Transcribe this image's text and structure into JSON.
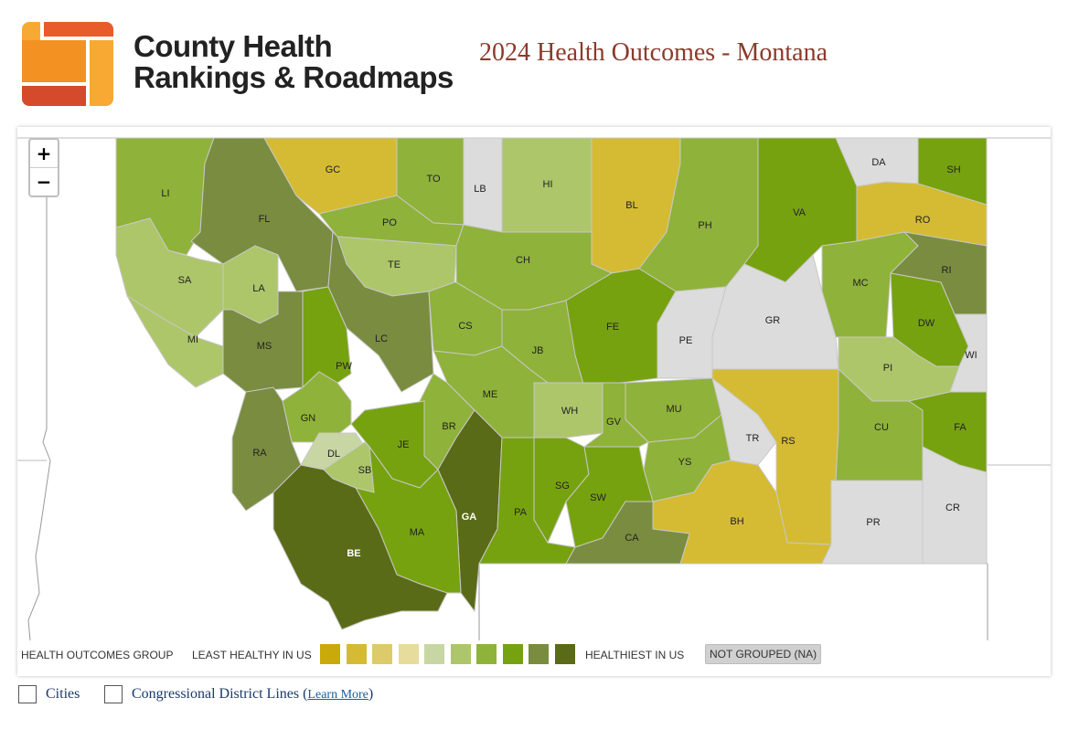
{
  "brand": {
    "line1": "County Health",
    "line2": "Rankings & Roadmaps"
  },
  "page_title": "2024 Health Outcomes - Montana",
  "zoom": {
    "in_label": "+",
    "out_label": "−"
  },
  "colors": {
    "g1": "#c9aa0a",
    "g2": "#d4bb33",
    "g3": "#dccb6a",
    "g4": "#e6dc9c",
    "g5": "#c8d6a4",
    "g6": "#adc66a",
    "g7": "#8fb23a",
    "g8": "#77a210",
    "g9": "#7a8c40",
    "g10": "#5a6b18",
    "na": "#dcdcdc"
  },
  "counties": [
    {
      "abbr": "LI",
      "group": "g7"
    },
    {
      "abbr": "FL",
      "group": "g9"
    },
    {
      "abbr": "GC",
      "group": "g2"
    },
    {
      "abbr": "TO",
      "group": "g7"
    },
    {
      "abbr": "LB",
      "group": "na"
    },
    {
      "abbr": "HI",
      "group": "g6"
    },
    {
      "abbr": "BL",
      "group": "g2"
    },
    {
      "abbr": "PH",
      "group": "g7"
    },
    {
      "abbr": "VA",
      "group": "g8"
    },
    {
      "abbr": "DA",
      "group": "na"
    },
    {
      "abbr": "SH",
      "group": "g8"
    },
    {
      "abbr": "RO",
      "group": "g2"
    },
    {
      "abbr": "PO",
      "group": "g7"
    },
    {
      "abbr": "SA",
      "group": "g6"
    },
    {
      "abbr": "LA",
      "group": "g6"
    },
    {
      "abbr": "TE",
      "group": "g6"
    },
    {
      "abbr": "CH",
      "group": "g7"
    },
    {
      "abbr": "MC",
      "group": "g7"
    },
    {
      "abbr": "RI",
      "group": "g9"
    },
    {
      "abbr": "MI",
      "group": "g6"
    },
    {
      "abbr": "MS",
      "group": "g9"
    },
    {
      "abbr": "LC",
      "group": "g9"
    },
    {
      "abbr": "CS",
      "group": "g7"
    },
    {
      "abbr": "FE",
      "group": "g8"
    },
    {
      "abbr": "PE",
      "group": "na"
    },
    {
      "abbr": "GR",
      "group": "na"
    },
    {
      "abbr": "DW",
      "group": "g8"
    },
    {
      "abbr": "WI",
      "group": "na"
    },
    {
      "abbr": "PW",
      "group": "g8"
    },
    {
      "abbr": "JB",
      "group": "g7"
    },
    {
      "abbr": "PI",
      "group": "g6"
    },
    {
      "abbr": "ME",
      "group": "g7"
    },
    {
      "abbr": "WH",
      "group": "g6"
    },
    {
      "abbr": "MU",
      "group": "g7"
    },
    {
      "abbr": "GN",
      "group": "g7"
    },
    {
      "abbr": "GV",
      "group": "g7"
    },
    {
      "abbr": "CU",
      "group": "g7"
    },
    {
      "abbr": "FA",
      "group": "g8"
    },
    {
      "abbr": "TR",
      "group": "na"
    },
    {
      "abbr": "RS",
      "group": "g2"
    },
    {
      "abbr": "BR",
      "group": "g7"
    },
    {
      "abbr": "JE",
      "group": "g8"
    },
    {
      "abbr": "RA",
      "group": "g9"
    },
    {
      "abbr": "DL",
      "group": "g5"
    },
    {
      "abbr": "SB",
      "group": "g6"
    },
    {
      "abbr": "YS",
      "group": "g7"
    },
    {
      "abbr": "SG",
      "group": "g8"
    },
    {
      "abbr": "SW",
      "group": "g8"
    },
    {
      "abbr": "GA",
      "group": "g10"
    },
    {
      "abbr": "PA",
      "group": "g8"
    },
    {
      "abbr": "BH",
      "group": "g2"
    },
    {
      "abbr": "PR",
      "group": "na"
    },
    {
      "abbr": "CR",
      "group": "na"
    },
    {
      "abbr": "MA",
      "group": "g8"
    },
    {
      "abbr": "BE",
      "group": "g10"
    },
    {
      "abbr": "CA",
      "group": "g9"
    }
  ],
  "legend": {
    "group_label": "HEALTH OUTCOMES GROUP",
    "least_label": "LEAST HEALTHY IN US",
    "healthiest_label": "HEALTHIEST IN US",
    "na_label": "NOT GROUPED (NA)",
    "swatches": [
      "#c9aa0a",
      "#d4bb33",
      "#dccb6a",
      "#e6dc9c",
      "#c8d6a4",
      "#adc66a",
      "#8fb23a",
      "#77a210",
      "#7a8c40",
      "#5a6b18"
    ]
  },
  "options": {
    "cities_label": "Cities",
    "district_label": "Congressional District Lines (",
    "learn_more": "Learn More",
    "close_paren": ")"
  }
}
